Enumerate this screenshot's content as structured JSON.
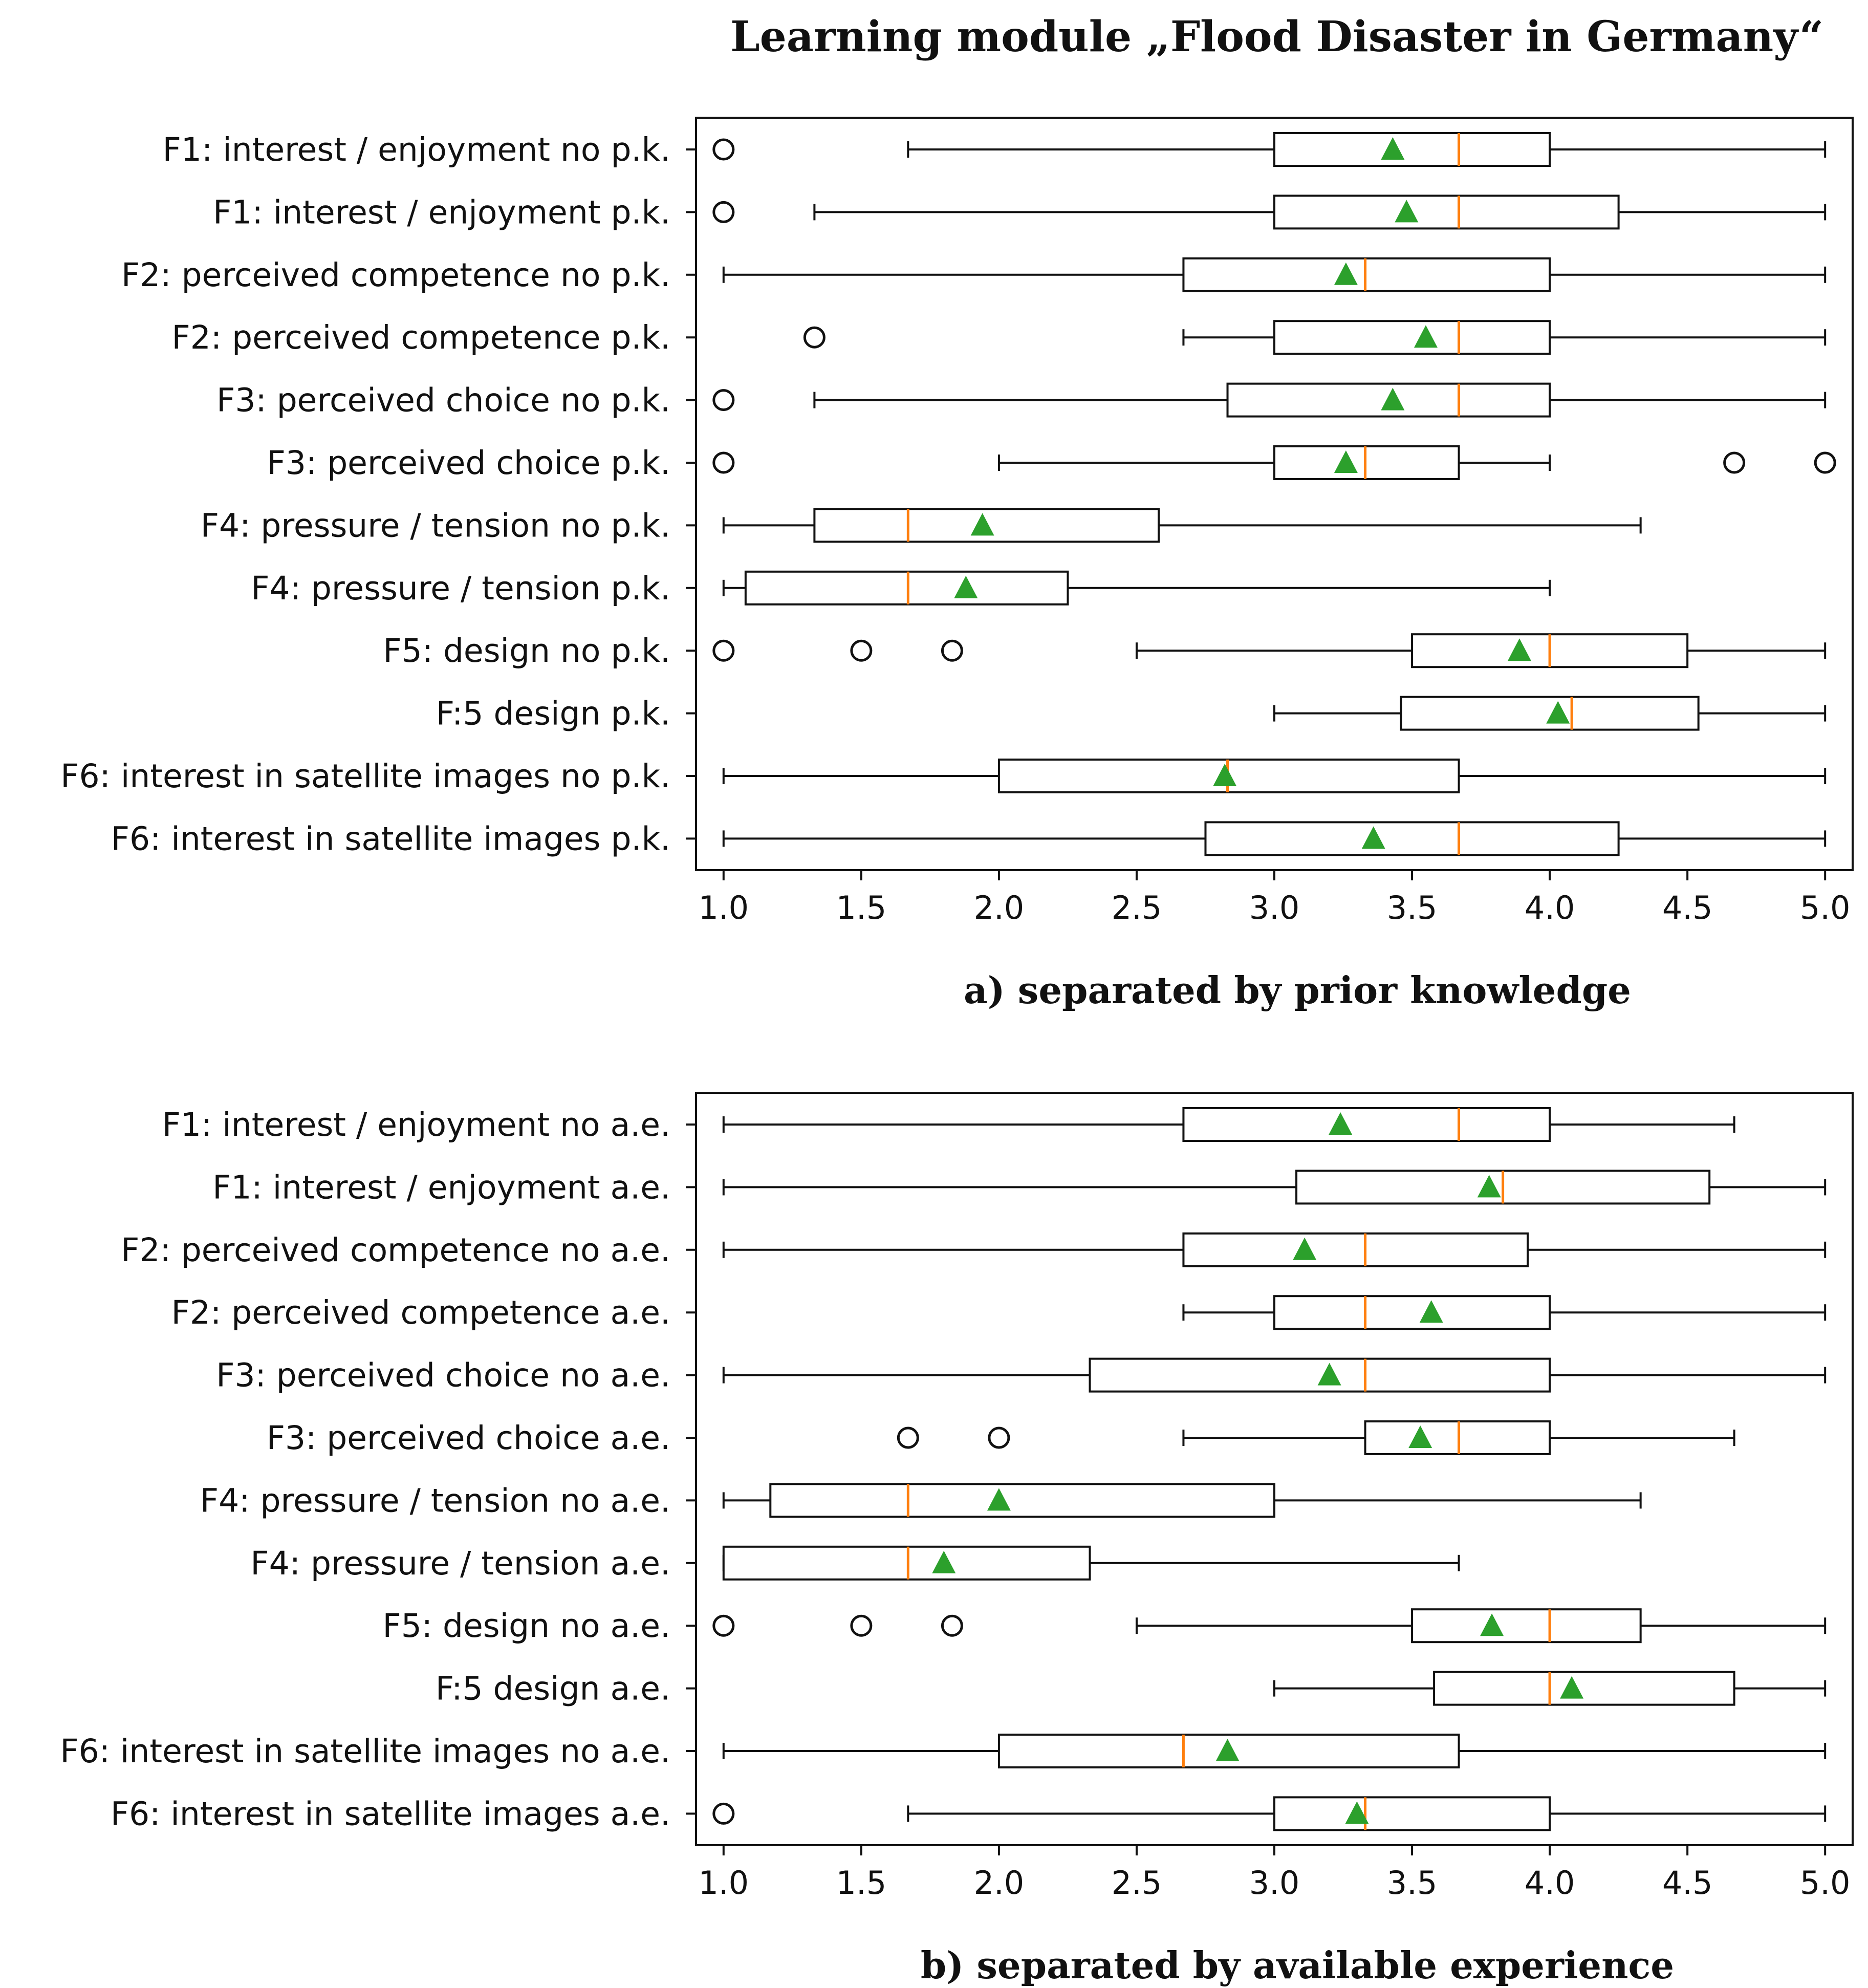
{
  "figure_title": "Learning module „Flood Disaster in Germany“",
  "colors": {
    "box": "#111111",
    "median": "#ff7f0e",
    "mean_marker": "#2ca02c",
    "outlier": "#111111"
  },
  "chart_data": [
    {
      "type": "boxplot",
      "orientation": "horizontal",
      "caption": "a) separated by prior knowledge",
      "xlim": [
        0.9,
        5.1
      ],
      "xticks": [
        "1.0",
        "1.5",
        "2.0",
        "2.5",
        "3.0",
        "3.5",
        "4.0",
        "4.5",
        "5.0"
      ],
      "grid": false,
      "categories": [
        {
          "label": "F1: interest / enjoyment no p.k.",
          "whisker_low": 1.67,
          "q1": 3.0,
          "median": 3.67,
          "q3": 4.0,
          "whisker_high": 5.0,
          "mean": 3.43,
          "outliers": [
            1.0
          ]
        },
        {
          "label": "F1: interest / enjoyment p.k.",
          "whisker_low": 1.33,
          "q1": 3.0,
          "median": 3.67,
          "q3": 4.25,
          "whisker_high": 5.0,
          "mean": 3.48,
          "outliers": [
            1.0
          ]
        },
        {
          "label": "F2: perceived competence no p.k.",
          "whisker_low": 1.0,
          "q1": 2.67,
          "median": 3.33,
          "q3": 4.0,
          "whisker_high": 5.0,
          "mean": 3.26,
          "outliers": []
        },
        {
          "label": "F2: perceived competence p.k.",
          "whisker_low": 2.67,
          "q1": 3.0,
          "median": 3.67,
          "q3": 4.0,
          "whisker_high": 5.0,
          "mean": 3.55,
          "outliers": [
            1.33
          ]
        },
        {
          "label": "F3: perceived choice no p.k.",
          "whisker_low": 1.33,
          "q1": 2.83,
          "median": 3.67,
          "q3": 4.0,
          "whisker_high": 5.0,
          "mean": 3.43,
          "outliers": [
            1.0
          ]
        },
        {
          "label": "F3: perceived choice p.k.",
          "whisker_low": 2.0,
          "q1": 3.0,
          "median": 3.33,
          "q3": 3.67,
          "whisker_high": 4.0,
          "mean": 3.26,
          "outliers": [
            1.0,
            4.67,
            5.0
          ]
        },
        {
          "label": "F4: pressure / tension no p.k.",
          "whisker_low": 1.0,
          "q1": 1.33,
          "median": 1.67,
          "q3": 2.58,
          "whisker_high": 4.33,
          "mean": 1.94,
          "outliers": []
        },
        {
          "label": "F4: pressure / tension p.k.",
          "whisker_low": 1.0,
          "q1": 1.08,
          "median": 1.67,
          "q3": 2.25,
          "whisker_high": 4.0,
          "mean": 1.88,
          "outliers": []
        },
        {
          "label": "F5: design no p.k.",
          "whisker_low": 2.5,
          "q1": 3.5,
          "median": 4.0,
          "q3": 4.5,
          "whisker_high": 5.0,
          "mean": 3.89,
          "outliers": [
            1.0,
            1.5,
            1.83
          ]
        },
        {
          "label": "F:5 design p.k.",
          "whisker_low": 3.0,
          "q1": 3.46,
          "median": 4.08,
          "q3": 4.54,
          "whisker_high": 5.0,
          "mean": 4.03,
          "outliers": []
        },
        {
          "label": "F6: interest in satellite images no p.k.",
          "whisker_low": 1.0,
          "q1": 2.0,
          "median": 2.83,
          "q3": 3.67,
          "whisker_high": 5.0,
          "mean": 2.82,
          "outliers": []
        },
        {
          "label": "F6: interest in satellite images p.k.",
          "whisker_low": 1.0,
          "q1": 2.75,
          "median": 3.67,
          "q3": 4.25,
          "whisker_high": 5.0,
          "mean": 3.36,
          "outliers": []
        }
      ]
    },
    {
      "type": "boxplot",
      "orientation": "horizontal",
      "caption": "b) separated by available experience",
      "xlim": [
        0.9,
        5.1
      ],
      "xticks": [
        "1.0",
        "1.5",
        "2.0",
        "2.5",
        "3.0",
        "3.5",
        "4.0",
        "4.5",
        "5.0"
      ],
      "grid": false,
      "categories": [
        {
          "label": "F1: interest / enjoyment no a.e.",
          "whisker_low": 1.0,
          "q1": 2.67,
          "median": 3.67,
          "q3": 4.0,
          "whisker_high": 4.67,
          "mean": 3.24,
          "outliers": []
        },
        {
          "label": "F1: interest / enjoyment a.e.",
          "whisker_low": 1.0,
          "q1": 3.08,
          "median": 3.83,
          "q3": 4.58,
          "whisker_high": 5.0,
          "mean": 3.78,
          "outliers": []
        },
        {
          "label": "F2: perceived competence no a.e.",
          "whisker_low": 1.0,
          "q1": 2.67,
          "median": 3.33,
          "q3": 3.92,
          "whisker_high": 5.0,
          "mean": 3.11,
          "outliers": []
        },
        {
          "label": "F2: perceived competence a.e.",
          "whisker_low": 2.67,
          "q1": 3.0,
          "median": 3.33,
          "q3": 4.0,
          "whisker_high": 5.0,
          "mean": 3.57,
          "outliers": []
        },
        {
          "label": "F3: perceived choice no a.e.",
          "whisker_low": 1.0,
          "q1": 2.33,
          "median": 3.33,
          "q3": 4.0,
          "whisker_high": 5.0,
          "mean": 3.2,
          "outliers": []
        },
        {
          "label": "F3: perceived choice a.e.",
          "whisker_low": 2.67,
          "q1": 3.33,
          "median": 3.67,
          "q3": 4.0,
          "whisker_high": 4.67,
          "mean": 3.53,
          "outliers": [
            1.67,
            2.0
          ]
        },
        {
          "label": "F4: pressure / tension no a.e.",
          "whisker_low": 1.0,
          "q1": 1.17,
          "median": 1.67,
          "q3": 3.0,
          "whisker_high": 4.33,
          "mean": 2.0,
          "outliers": []
        },
        {
          "label": "F4: pressure / tension a.e.",
          "whisker_low": 1.0,
          "q1": 1.0,
          "median": 1.67,
          "q3": 2.33,
          "whisker_high": 3.67,
          "mean": 1.8,
          "outliers": []
        },
        {
          "label": "F5: design no a.e.",
          "whisker_low": 2.5,
          "q1": 3.5,
          "median": 4.0,
          "q3": 4.33,
          "whisker_high": 5.0,
          "mean": 3.79,
          "outliers": [
            1.0,
            1.5,
            1.83
          ]
        },
        {
          "label": "F:5 design a.e.",
          "whisker_low": 3.0,
          "q1": 3.58,
          "median": 4.0,
          "q3": 4.67,
          "whisker_high": 5.0,
          "mean": 4.08,
          "outliers": []
        },
        {
          "label": "F6: interest in satellite images no a.e.",
          "whisker_low": 1.0,
          "q1": 2.0,
          "median": 2.67,
          "q3": 3.67,
          "whisker_high": 5.0,
          "mean": 2.83,
          "outliers": []
        },
        {
          "label": "F6: interest in satellite images a.e.",
          "whisker_low": 1.67,
          "q1": 3.0,
          "median": 3.33,
          "q3": 4.0,
          "whisker_high": 5.0,
          "mean": 3.3,
          "outliers": [
            1.0
          ]
        }
      ]
    }
  ]
}
